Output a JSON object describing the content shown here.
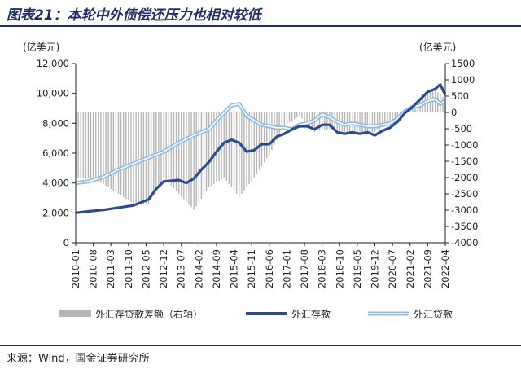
{
  "header": {
    "title": "图表21：本轮中外债偿还压力也相对较低"
  },
  "footer": {
    "source": "来源：Wind，国金证券研究所"
  },
  "chart_data": {
    "type": "bar+line",
    "title": "图表21：本轮中外债偿还压力也相对较低",
    "ylabel_left": "(亿美元)",
    "ylabel_right": "(亿美元)",
    "ylim_left": [
      0,
      12000
    ],
    "ylim_right": [
      -4000,
      1500
    ],
    "yticks_left": [
      "0",
      "2,000",
      "4,000",
      "6,000",
      "8,000",
      "10,000",
      "12,000"
    ],
    "yticks_right": [
      "-4000",
      "-3500",
      "-3000",
      "-2500",
      "-2000",
      "-1500",
      "-1000",
      "-500",
      "0",
      "500",
      "1000",
      "1500"
    ],
    "x_tick_labels": [
      "2010-01",
      "2010-08",
      "2011-03",
      "2011-10",
      "2012-05",
      "2012-12",
      "2013-07",
      "2014-02",
      "2014-09",
      "2015-04",
      "2015-11",
      "2016-06",
      "2017-01",
      "2017-08",
      "2018-03",
      "2018-10",
      "2019-05",
      "2019-12",
      "2020-07",
      "2021-02",
      "2021-09",
      "2022-04"
    ],
    "legend": [
      "外汇存贷款差额（右轴）",
      "外汇存款",
      "外汇贷款"
    ],
    "colors": {
      "deposits": "#2e4a8e",
      "loans": "#8fb9e3",
      "gap": "#b5b5b5",
      "title": "#1f2f66"
    },
    "series": [
      {
        "name": "外汇存款",
        "axis": "left",
        "points": [
          [
            "2010-01",
            2000
          ],
          [
            "2010-06",
            2100
          ],
          [
            "2010-12",
            2200
          ],
          [
            "2011-06",
            2350
          ],
          [
            "2011-12",
            2500
          ],
          [
            "2012-06",
            2900
          ],
          [
            "2012-09",
            3600
          ],
          [
            "2012-12",
            4100
          ],
          [
            "2013-06",
            4200
          ],
          [
            "2013-09",
            4000
          ],
          [
            "2013-12",
            4300
          ],
          [
            "2014-03",
            4900
          ],
          [
            "2014-06",
            5400
          ],
          [
            "2014-09",
            6100
          ],
          [
            "2014-12",
            6700
          ],
          [
            "2015-03",
            6900
          ],
          [
            "2015-06",
            6700
          ],
          [
            "2015-09",
            6100
          ],
          [
            "2015-12",
            6200
          ],
          [
            "2016-03",
            6600
          ],
          [
            "2016-06",
            6600
          ],
          [
            "2016-09",
            7100
          ],
          [
            "2016-12",
            7300
          ],
          [
            "2017-03",
            7600
          ],
          [
            "2017-06",
            7800
          ],
          [
            "2017-09",
            7800
          ],
          [
            "2017-12",
            7600
          ],
          [
            "2018-03",
            7900
          ],
          [
            "2018-06",
            7900
          ],
          [
            "2018-09",
            7400
          ],
          [
            "2018-12",
            7300
          ],
          [
            "2019-03",
            7400
          ],
          [
            "2019-06",
            7300
          ],
          [
            "2019-09",
            7400
          ],
          [
            "2019-12",
            7200
          ],
          [
            "2020-03",
            7500
          ],
          [
            "2020-06",
            7700
          ],
          [
            "2020-09",
            8100
          ],
          [
            "2020-12",
            8700
          ],
          [
            "2021-03",
            9100
          ],
          [
            "2021-06",
            9600
          ],
          [
            "2021-09",
            10100
          ],
          [
            "2021-12",
            10300
          ],
          [
            "2022-02",
            10600
          ],
          [
            "2022-04",
            9900
          ]
        ]
      },
      {
        "name": "外汇贷款",
        "axis": "left",
        "points": [
          [
            "2010-01",
            4000
          ],
          [
            "2010-06",
            4100
          ],
          [
            "2010-12",
            4400
          ],
          [
            "2011-06",
            4900
          ],
          [
            "2011-12",
            5300
          ],
          [
            "2012-06",
            5700
          ],
          [
            "2012-12",
            6100
          ],
          [
            "2013-06",
            6700
          ],
          [
            "2013-12",
            7200
          ],
          [
            "2014-06",
            7600
          ],
          [
            "2014-09",
            8200
          ],
          [
            "2014-12",
            8700
          ],
          [
            "2015-03",
            9200
          ],
          [
            "2015-06",
            9300
          ],
          [
            "2015-09",
            8500
          ],
          [
            "2015-12",
            8200
          ],
          [
            "2016-03",
            7900
          ],
          [
            "2016-06",
            7800
          ],
          [
            "2016-09",
            7700
          ],
          [
            "2016-12",
            7700
          ],
          [
            "2017-03",
            7600
          ],
          [
            "2017-06",
            7900
          ],
          [
            "2017-09",
            8000
          ],
          [
            "2017-12",
            8200
          ],
          [
            "2018-03",
            8600
          ],
          [
            "2018-06",
            8400
          ],
          [
            "2018-09",
            8100
          ],
          [
            "2018-12",
            7900
          ],
          [
            "2019-03",
            8000
          ],
          [
            "2019-06",
            7900
          ],
          [
            "2019-09",
            7800
          ],
          [
            "2019-12",
            7800
          ],
          [
            "2020-03",
            7900
          ],
          [
            "2020-06",
            8000
          ],
          [
            "2020-09",
            8300
          ],
          [
            "2020-12",
            8800
          ],
          [
            "2021-03",
            9100
          ],
          [
            "2021-06",
            9200
          ],
          [
            "2021-09",
            9500
          ],
          [
            "2021-12",
            9600
          ],
          [
            "2022-02",
            9300
          ],
          [
            "2022-04",
            9500
          ]
        ]
      },
      {
        "name": "外汇存贷款差额（右轴）",
        "axis": "right",
        "points": [
          [
            "2010-01",
            -2000
          ],
          [
            "2010-06",
            -2000
          ],
          [
            "2010-12",
            -2200
          ],
          [
            "2011-06",
            -2500
          ],
          [
            "2011-12",
            -2800
          ],
          [
            "2012-06",
            -2800
          ],
          [
            "2012-12",
            -2000
          ],
          [
            "2013-06",
            -2500
          ],
          [
            "2013-12",
            -3000
          ],
          [
            "2014-06",
            -2300
          ],
          [
            "2014-12",
            -2000
          ],
          [
            "2015-06",
            -2600
          ],
          [
            "2015-12",
            -2000
          ],
          [
            "2016-06",
            -1300
          ],
          [
            "2016-12",
            -400
          ],
          [
            "2017-06",
            -100
          ],
          [
            "2017-12",
            -600
          ],
          [
            "2018-06",
            -500
          ],
          [
            "2018-12",
            -600
          ],
          [
            "2019-06",
            -600
          ],
          [
            "2019-12",
            -600
          ],
          [
            "2020-06",
            -300
          ],
          [
            "2020-12",
            -100
          ],
          [
            "2021-06",
            400
          ],
          [
            "2021-12",
            700
          ],
          [
            "2022-04",
            400
          ]
        ]
      }
    ]
  }
}
